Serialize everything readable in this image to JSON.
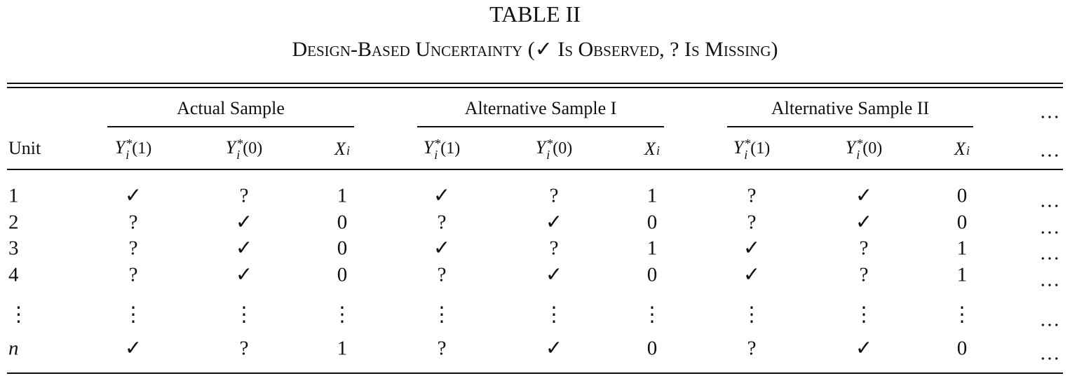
{
  "header": {
    "title": "TABLE II",
    "subtitle": "Design-Based Uncertainty (✓ Is Observed, ? Is Missing)"
  },
  "table": {
    "groups": [
      "Actual Sample",
      "Alternative Sample I",
      "Alternative Sample II",
      "…"
    ],
    "columns": [
      "Unit",
      {
        "base": "Y",
        "sup": "*",
        "sub": "i",
        "arg": "(1)"
      },
      {
        "base": "Y",
        "sup": "*",
        "sub": "i",
        "arg": "(0)"
      },
      {
        "base": "X",
        "sub": "i"
      },
      {
        "base": "Y",
        "sup": "*",
        "sub": "i",
        "arg": "(1)"
      },
      {
        "base": "Y",
        "sup": "*",
        "sub": "i",
        "arg": "(0)"
      },
      {
        "base": "X",
        "sub": "i"
      },
      {
        "base": "Y",
        "sup": "*",
        "sub": "i",
        "arg": "(1)"
      },
      {
        "base": "Y",
        "sup": "*",
        "sub": "i",
        "arg": "(0)"
      },
      {
        "base": "X",
        "sub": "i"
      },
      "…"
    ],
    "rows": [
      [
        "1",
        "✓",
        "?",
        "1",
        "✓",
        "?",
        "1",
        "?",
        "✓",
        "0",
        "…"
      ],
      [
        "2",
        "?",
        "✓",
        "0",
        "?",
        "✓",
        "0",
        "?",
        "✓",
        "0",
        "…"
      ],
      [
        "3",
        "?",
        "✓",
        "0",
        "✓",
        "?",
        "1",
        "✓",
        "?",
        "1",
        "…"
      ],
      [
        "4",
        "?",
        "✓",
        "0",
        "?",
        "✓",
        "0",
        "✓",
        "?",
        "1",
        "…"
      ],
      [
        "⋮",
        "⋮",
        "⋮",
        "⋮",
        "⋮",
        "⋮",
        "⋮",
        "⋮",
        "⋮",
        "⋮",
        "…"
      ],
      [
        "n",
        "✓",
        "?",
        "1",
        "?",
        "✓",
        "0",
        "?",
        "✓",
        "0",
        "…"
      ]
    ]
  }
}
